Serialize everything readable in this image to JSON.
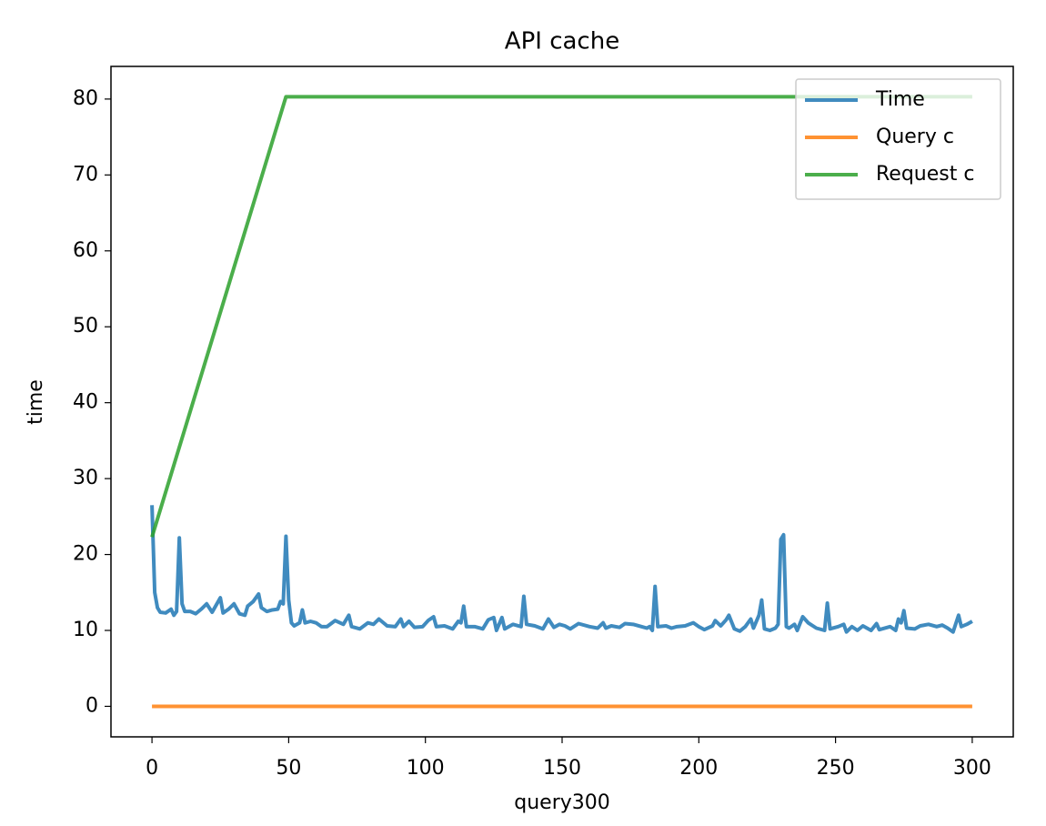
{
  "chart_data": {
    "type": "line",
    "title": "API cache",
    "x_label": "query300",
    "y_label": "time",
    "xlim": [
      -15,
      315
    ],
    "ylim": [
      -4.02,
      84.3
    ],
    "xticks": [
      0,
      50,
      100,
      150,
      200,
      250,
      300
    ],
    "yticks": [
      0,
      10,
      20,
      30,
      40,
      50,
      60,
      70,
      80
    ],
    "legend": "upper right",
    "grid": false,
    "series": [
      {
        "name": "Time",
        "color": "#1f77b4",
        "x": [
          0,
          1,
          2,
          3,
          5,
          7,
          8,
          9,
          10,
          11,
          12,
          14,
          16,
          18,
          20,
          22,
          25,
          26,
          28,
          30,
          32,
          34,
          35,
          37,
          39,
          40,
          42,
          44,
          46,
          47,
          48,
          49,
          50,
          51,
          52,
          54,
          55,
          56,
          58,
          60,
          62,
          64,
          67,
          70,
          72,
          73,
          76,
          79,
          81,
          83,
          86,
          89,
          91,
          92,
          94,
          96,
          99,
          101,
          103,
          104,
          107,
          110,
          112,
          113,
          114,
          115,
          118,
          121,
          123,
          125,
          126,
          128,
          129,
          132,
          135,
          136,
          137,
          140,
          143,
          145,
          147,
          149,
          151,
          153,
          156,
          160,
          163,
          165,
          166,
          168,
          171,
          173,
          176,
          179,
          181,
          182,
          183,
          184,
          185,
          188,
          190,
          192,
          195,
          198,
          200,
          202,
          205,
          206,
          208,
          210,
          211,
          213,
          215,
          217,
          219,
          220,
          222,
          223,
          224,
          226,
          228,
          229,
          230,
          231,
          232,
          233,
          235,
          236,
          238,
          240,
          243,
          246,
          247,
          248,
          251,
          253,
          254,
          256,
          258,
          260,
          263,
          265,
          266,
          270,
          272,
          273,
          274,
          275,
          276,
          279,
          281,
          284,
          287,
          289,
          291,
          293,
          295,
          296,
          298,
          300
        ],
        "values": [
          26.5,
          15,
          13,
          12.4,
          12.3,
          12.8,
          12,
          12.5,
          22.2,
          13.5,
          12.5,
          12.5,
          12.2,
          12.8,
          13.5,
          12.4,
          14.3,
          12.3,
          12.8,
          13.5,
          12.2,
          12,
          13.2,
          13.8,
          14.8,
          13,
          12.5,
          12.7,
          12.8,
          13.8,
          13.5,
          22.4,
          14,
          11,
          10.6,
          11,
          12.7,
          11,
          11.2,
          11,
          10.5,
          10.5,
          11.3,
          10.8,
          12,
          10.5,
          10.2,
          11,
          10.8,
          11.5,
          10.6,
          10.5,
          11.5,
          10.5,
          11.2,
          10.4,
          10.5,
          11.3,
          11.8,
          10.5,
          10.6,
          10.2,
          11.2,
          11,
          13.2,
          10.5,
          10.5,
          10.2,
          11.4,
          11.7,
          10,
          11.7,
          10.2,
          10.8,
          10.5,
          14.5,
          10.8,
          10.6,
          10.2,
          11.5,
          10.4,
          10.8,
          10.6,
          10.2,
          10.9,
          10.5,
          10.3,
          11,
          10.3,
          10.6,
          10.4,
          10.9,
          10.8,
          10.5,
          10.3,
          10.5,
          10,
          15.8,
          10.5,
          10.6,
          10.3,
          10.5,
          10.6,
          11,
          10.5,
          10.1,
          10.6,
          11.3,
          10.6,
          11.4,
          12,
          10.2,
          9.9,
          10.5,
          11.5,
          10.3,
          12,
          14,
          10.2,
          10,
          10.3,
          10.8,
          22,
          22.6,
          10.5,
          10.3,
          10.8,
          10,
          11.8,
          11,
          10.3,
          10,
          13.6,
          10.2,
          10.5,
          10.8,
          9.8,
          10.5,
          10,
          10.6,
          10,
          10.9,
          10.1,
          10.5,
          10,
          11.5,
          11,
          12.6,
          10.3,
          10.2,
          10.6,
          10.8,
          10.5,
          10.7,
          10.3,
          9.8,
          12,
          10.5,
          10.8,
          11.2
        ]
      },
      {
        "name": "Query c",
        "color": "#ff7f0e",
        "x": [
          0,
          300
        ],
        "values": [
          0,
          0
        ]
      },
      {
        "name": "Request c",
        "color": "#2ca02c",
        "x": [
          0,
          49,
          300
        ],
        "values": [
          22.3,
          80.3,
          80.3
        ]
      }
    ]
  }
}
